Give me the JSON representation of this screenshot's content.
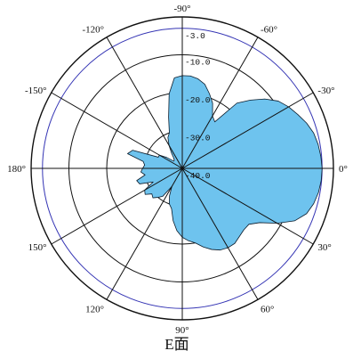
{
  "chart_data": {
    "type": "polar",
    "title": "E面",
    "colors": {
      "fill": "#6ec3ee",
      "stroke": "#0b1c2c",
      "grid": "#111111",
      "outer_ring": "#3434b4"
    },
    "angle_direction": "clockwise",
    "zero_direction": "right",
    "angle_ticks": [
      {
        "value": 0,
        "label": "0°"
      },
      {
        "value": 30,
        "label": "30°"
      },
      {
        "value": 60,
        "label": "60°"
      },
      {
        "value": 90,
        "label": "90°"
      },
      {
        "value": 120,
        "label": "120°"
      },
      {
        "value": 150,
        "label": "150°"
      },
      {
        "value": 180,
        "label": "180°"
      },
      {
        "value": -150,
        "label": "-150°"
      },
      {
        "value": -120,
        "label": "-120°"
      },
      {
        "value": -90,
        "label": "-90°"
      },
      {
        "value": -60,
        "label": "-60°"
      },
      {
        "value": -30,
        "label": "-30°"
      }
    ],
    "radial_range": [
      -40,
      0
    ],
    "radial_rings": [
      -40,
      -30,
      -20,
      -10,
      -3,
      0
    ],
    "radial_tick_labels": [
      {
        "value": -3,
        "label": "-3.0"
      },
      {
        "value": -10,
        "label": "-10.0"
      },
      {
        "value": -20,
        "label": "-20.0"
      },
      {
        "value": -30,
        "label": "-30.0"
      },
      {
        "value": -40,
        "label": "-40.0"
      }
    ],
    "series": [
      {
        "angles": [
          0,
          5,
          10,
          15,
          20,
          25,
          30,
          35,
          40,
          45,
          50,
          55,
          60,
          65,
          70,
          75,
          80,
          85,
          90,
          95,
          100,
          105,
          110,
          115,
          120,
          125,
          130,
          135,
          140,
          145,
          150,
          155,
          160,
          165,
          170,
          175,
          180,
          185,
          190,
          195,
          200,
          205,
          210,
          215,
          220,
          225,
          230,
          235,
          240,
          245,
          250,
          255,
          260,
          265,
          270,
          275,
          280,
          285,
          290,
          295,
          300,
          305,
          310,
          315,
          320,
          325,
          330,
          335,
          340,
          345,
          350,
          355
        ],
        "values": [
          -3,
          -3.1,
          -3.4,
          -4,
          -5,
          -7.2,
          -11,
          -15,
          -17,
          -17,
          -16.5,
          -15.8,
          -15.8,
          -16.2,
          -17.2,
          -18.5,
          -20,
          -20.8,
          -21.8,
          -23.5,
          -26,
          -29,
          -30,
          -32,
          -34.5,
          -31,
          -30,
          -29,
          -29.5,
          -28,
          -28.5,
          -31.5,
          -28,
          -27.5,
          -30,
          -29,
          -29.5,
          -30,
          -29.5,
          -25,
          -26,
          -33,
          -33,
          -35,
          -37,
          -37,
          -36.5,
          -35,
          -33,
          -31,
          -30,
          -26,
          -20,
          -16,
          -15.5,
          -15.5,
          -16,
          -17,
          -19,
          -21,
          -24,
          -25,
          -17.5,
          -14.5,
          -11.5,
          -9,
          -7.5,
          -6.3,
          -5,
          -4,
          -3.5,
          -3.2
        ]
      }
    ]
  }
}
